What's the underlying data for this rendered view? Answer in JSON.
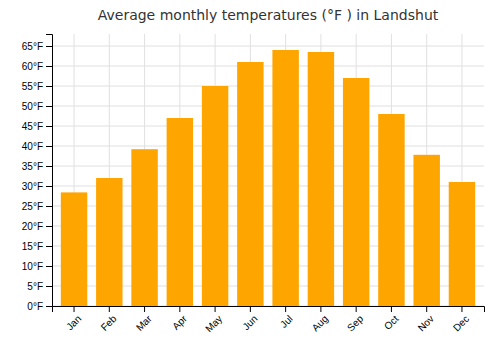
{
  "chart_data": {
    "type": "bar",
    "title": "Average monthly temperatures (°F ) in Landshut",
    "categories": [
      "Jan",
      "Feb",
      "Mar",
      "Apr",
      "May",
      "Jun",
      "Jul",
      "Aug",
      "Sep",
      "Oct",
      "Nov",
      "Dec"
    ],
    "values": [
      28.4,
      32.0,
      39.2,
      47.0,
      55.0,
      61.0,
      64.0,
      63.5,
      57.0,
      48.0,
      37.8,
      31.0
    ],
    "color": "#FFA500",
    "ylim": [
      0,
      68
    ],
    "yticks": [
      {
        "value": 0,
        "label": "0°F"
      },
      {
        "value": 5,
        "label": "5°F"
      },
      {
        "value": 10,
        "label": "10°F"
      },
      {
        "value": 15,
        "label": "15°F"
      },
      {
        "value": 20,
        "label": "20°F"
      },
      {
        "value": 25,
        "label": "25°F"
      },
      {
        "value": 30,
        "label": "30°F"
      },
      {
        "value": 35,
        "label": "35°F"
      },
      {
        "value": 40,
        "label": "40°F"
      },
      {
        "value": 45,
        "label": "45°F"
      },
      {
        "value": 50,
        "label": "50°F"
      },
      {
        "value": 55,
        "label": "55°F"
      },
      {
        "value": 60,
        "label": "60°F"
      },
      {
        "value": 65,
        "label": "65°F"
      }
    ],
    "grid": true
  }
}
